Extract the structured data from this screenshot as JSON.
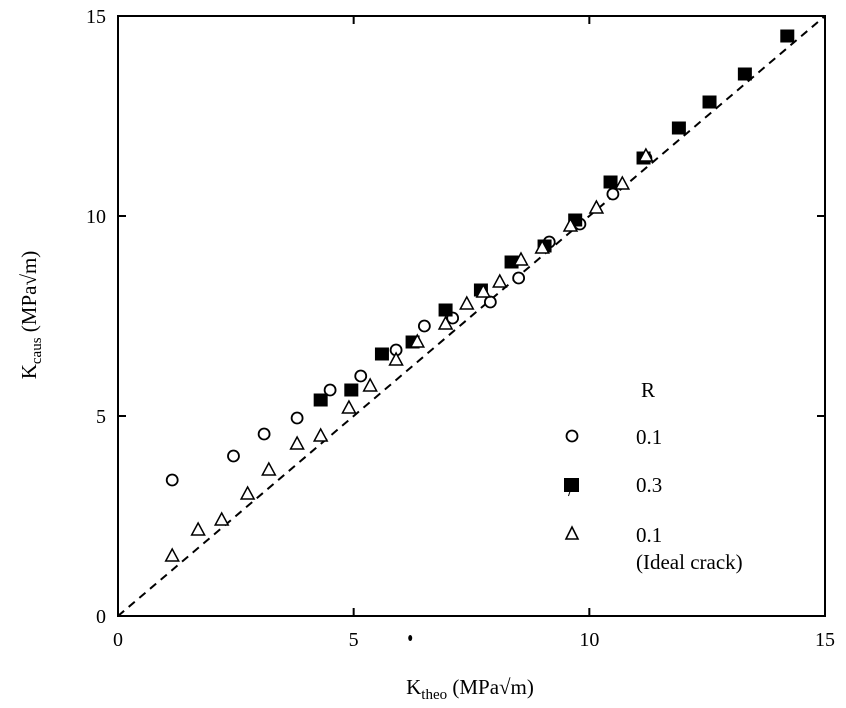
{
  "chart_data": {
    "type": "scatter",
    "title": "",
    "xlabel": {
      "main": "K",
      "sub": "theo",
      "unit": " (MPa√m)"
    },
    "ylabel": {
      "main": "K",
      "sub": "caus",
      "unit": " (MPa√m)"
    },
    "xlim": [
      0,
      15
    ],
    "ylim": [
      0,
      15
    ],
    "xticks": [
      0,
      5,
      10,
      15
    ],
    "yticks": [
      0,
      5,
      10,
      15
    ],
    "grid": false,
    "legend": {
      "placement": "bottom-right",
      "title": "R",
      "entries": [
        {
          "marker": "open-circle",
          "label": "0.1",
          "sublabel": ""
        },
        {
          "marker": "filled-square",
          "label": "0.3",
          "sublabel": ""
        },
        {
          "marker": "open-triangle",
          "label": "0.1",
          "sublabel": "(Ideal crack)"
        }
      ]
    },
    "reference_line": {
      "style": "dashed",
      "from": [
        0,
        0
      ],
      "to": [
        15,
        15
      ]
    },
    "series": [
      {
        "marker": "open-circle",
        "points": [
          [
            1.15,
            3.4
          ],
          [
            2.45,
            4.0
          ],
          [
            3.1,
            4.55
          ],
          [
            3.8,
            4.95
          ],
          [
            4.5,
            5.65
          ],
          [
            5.15,
            6.0
          ],
          [
            5.9,
            6.65
          ],
          [
            6.5,
            7.25
          ],
          [
            7.1,
            7.45
          ],
          [
            7.9,
            7.85
          ],
          [
            8.5,
            8.45
          ],
          [
            9.15,
            9.35
          ],
          [
            9.8,
            9.8
          ],
          [
            10.5,
            10.55
          ],
          [
            11.2,
            11.45
          ]
        ]
      },
      {
        "marker": "filled-square",
        "points": [
          [
            4.3,
            5.4
          ],
          [
            4.95,
            5.65
          ],
          [
            5.6,
            6.55
          ],
          [
            6.25,
            6.85
          ],
          [
            6.95,
            7.65
          ],
          [
            7.7,
            8.15
          ],
          [
            8.35,
            8.85
          ],
          [
            9.05,
            9.25
          ],
          [
            9.7,
            9.9
          ],
          [
            10.45,
            10.85
          ],
          [
            11.15,
            11.45
          ],
          [
            11.9,
            12.2
          ],
          [
            12.55,
            12.85
          ],
          [
            13.3,
            13.55
          ],
          [
            14.2,
            14.5
          ]
        ]
      },
      {
        "marker": "open-triangle",
        "points": [
          [
            1.15,
            1.5
          ],
          [
            1.7,
            2.15
          ],
          [
            2.2,
            2.4
          ],
          [
            2.75,
            3.05
          ],
          [
            3.2,
            3.65
          ],
          [
            3.8,
            4.3
          ],
          [
            4.3,
            4.5
          ],
          [
            4.9,
            5.2
          ],
          [
            5.35,
            5.75
          ],
          [
            5.9,
            6.4
          ],
          [
            6.35,
            6.85
          ],
          [
            6.95,
            7.3
          ],
          [
            7.4,
            7.8
          ],
          [
            7.75,
            8.1
          ],
          [
            8.1,
            8.35
          ],
          [
            8.55,
            8.9
          ],
          [
            9.0,
            9.2
          ],
          [
            9.6,
            9.75
          ],
          [
            10.15,
            10.2
          ],
          [
            10.7,
            10.8
          ],
          [
            11.2,
            11.5
          ]
        ]
      }
    ],
    "stray_marks": [
      {
        "x": 6.2,
        "y": -0.55
      },
      {
        "x": 9.6,
        "y": 3.15
      }
    ]
  }
}
